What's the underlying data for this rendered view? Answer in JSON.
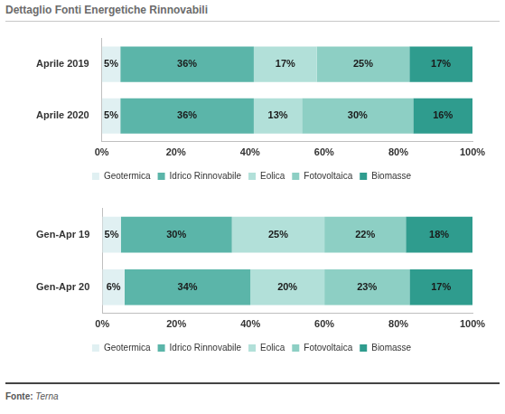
{
  "header": {
    "title": "Dettaglio Fonti Energetiche Rinnovabili"
  },
  "footer": {
    "source_label": "Fonte:",
    "source": "Terna"
  },
  "chart_data": [
    {
      "type": "bar",
      "orientation": "horizontal",
      "stacked": true,
      "data_labels": true,
      "legend": "bottom",
      "grid": false,
      "categories": [
        "Aprile 2019",
        "Aprile 2020"
      ],
      "series": [
        {
          "name": "Geotermica",
          "color": "#e0f0f2",
          "values": [
            5,
            5
          ],
          "value_labels": [
            "5%",
            "5%"
          ]
        },
        {
          "name": "Idrico Rinnovabile",
          "color": "#5bb5a9",
          "values": [
            36,
            36
          ],
          "value_labels": [
            "36%",
            "36%"
          ]
        },
        {
          "name": "Eolica",
          "color": "#b2e0d9",
          "values": [
            17,
            13
          ],
          "value_labels": [
            "17%",
            "13%"
          ]
        },
        {
          "name": "Fotovoltaica",
          "color": "#8dcfc4",
          "values": [
            25,
            30
          ],
          "value_labels": [
            "25%",
            "30%"
          ]
        },
        {
          "name": "Biomasse",
          "color": "#2f9c8e",
          "values": [
            17,
            16
          ],
          "value_labels": [
            "17%",
            "16%"
          ]
        }
      ],
      "xlim": [
        0,
        100
      ],
      "xticks": [
        {
          "value": 0,
          "label": "0%"
        },
        {
          "value": 20,
          "label": "20%"
        },
        {
          "value": 40,
          "label": "40%"
        },
        {
          "value": 60,
          "label": "60%"
        },
        {
          "value": 80,
          "label": "80%"
        },
        {
          "value": 100,
          "label": "100%"
        }
      ]
    },
    {
      "type": "bar",
      "orientation": "horizontal",
      "stacked": true,
      "data_labels": true,
      "legend": "bottom",
      "grid": false,
      "categories": [
        "Gen-Apr 19",
        "Gen-Apr 20"
      ],
      "series": [
        {
          "name": "Geotermica",
          "color": "#e0f0f2",
          "values": [
            5,
            6
          ],
          "value_labels": [
            "5%",
            "6%"
          ]
        },
        {
          "name": "Idrico Rinnovabile",
          "color": "#5bb5a9",
          "values": [
            30,
            34
          ],
          "value_labels": [
            "30%",
            "34%"
          ]
        },
        {
          "name": "Eolica",
          "color": "#b2e0d9",
          "values": [
            25,
            20
          ],
          "value_labels": [
            "25%",
            "20%"
          ]
        },
        {
          "name": "Fotovoltaica",
          "color": "#8dcfc4",
          "values": [
            22,
            23
          ],
          "value_labels": [
            "22%",
            "23%"
          ]
        },
        {
          "name": "Biomasse",
          "color": "#2f9c8e",
          "values": [
            18,
            17
          ],
          "value_labels": [
            "18%",
            "17%"
          ]
        }
      ],
      "xlim": [
        0,
        100
      ],
      "xticks": [
        {
          "value": 0,
          "label": "0%"
        },
        {
          "value": 20,
          "label": "20%"
        },
        {
          "value": 40,
          "label": "40%"
        },
        {
          "value": 60,
          "label": "60%"
        },
        {
          "value": 80,
          "label": "80%"
        },
        {
          "value": 100,
          "label": "100%"
        }
      ]
    }
  ]
}
